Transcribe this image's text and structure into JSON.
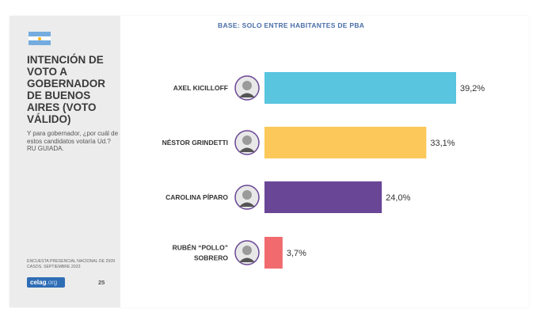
{
  "sidebar": {
    "title": "INTENCIÓN DE VOTO A GOBERNADOR DE BUENOS AIRES (VOTO VÁLIDO)",
    "question": "Y para gobernador, ¿por cuál de estos candidatos votaría Ud.? RU GUIADA.",
    "footnote": "ENCUESTA PRESENCIAL NACIONAL DE 2509 CASOS. SEPTIEMBRE 2023",
    "logo_main": "celag",
    "logo_suffix": ".org",
    "page_number": "25"
  },
  "colors": {
    "flag_blue": "#74acdf",
    "flag_sun": "#f6b40e",
    "logo": "#2f6db5"
  },
  "chart_data": {
    "type": "bar",
    "orientation": "horizontal",
    "title": "BASE: SOLO ENTRE HABITANTES DE PBA",
    "categories": [
      [
        "AXEL KICILLOFF"
      ],
      [
        "NÉSTOR GRINDETTI"
      ],
      [
        "CAROLINA PÍPARO"
      ],
      [
        "RUBÉN “POLLO”",
        "SOBRERO"
      ]
    ],
    "values": [
      39.2,
      33.1,
      24.0,
      3.7
    ],
    "value_labels": [
      "39,2%",
      "33,1%",
      "24,0%",
      "3,7%"
    ],
    "colors": [
      "#59c5df",
      "#fcc85a",
      "#6a4696",
      "#f06a6e"
    ],
    "avatar_icons": [
      "candidate-photo-icon",
      "candidate-photo-icon",
      "candidate-photo-icon",
      "candidate-photo-icon"
    ],
    "xlim": [
      0,
      40
    ],
    "grid": false,
    "legend": "none"
  }
}
